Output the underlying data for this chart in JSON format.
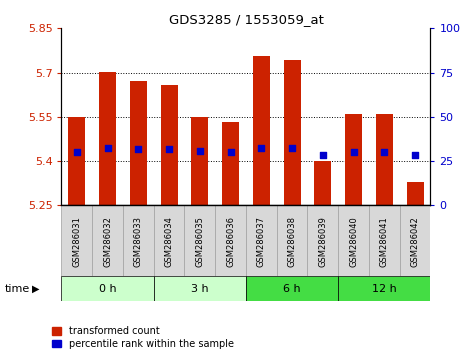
{
  "title": "GDS3285 / 1553059_at",
  "samples": [
    "GSM286031",
    "GSM286032",
    "GSM286033",
    "GSM286034",
    "GSM286035",
    "GSM286036",
    "GSM286037",
    "GSM286038",
    "GSM286039",
    "GSM286040",
    "GSM286041",
    "GSM286042"
  ],
  "bar_tops": [
    5.548,
    5.703,
    5.672,
    5.658,
    5.548,
    5.534,
    5.755,
    5.742,
    5.4,
    5.558,
    5.558,
    5.328
  ],
  "bar_bottom": 5.25,
  "blue_y": [
    5.432,
    5.443,
    5.44,
    5.44,
    5.435,
    5.432,
    5.445,
    5.443,
    5.42,
    5.432,
    5.43,
    5.42
  ],
  "ylim_left": [
    5.25,
    5.85
  ],
  "ylim_right": [
    0,
    100
  ],
  "yticks_left": [
    5.25,
    5.4,
    5.55,
    5.7,
    5.85
  ],
  "ytick_labels_left": [
    "5.25",
    "5.4",
    "5.55",
    "5.7",
    "5.85"
  ],
  "yticks_right": [
    0,
    25,
    50,
    75,
    100
  ],
  "ytick_labels_right": [
    "0",
    "25",
    "50",
    "75",
    "100"
  ],
  "bar_color": "#cc2200",
  "blue_color": "#0000cc",
  "group_boundaries": [
    {
      "start": 0,
      "end": 2,
      "label": "0 h",
      "color": "#ccffcc"
    },
    {
      "start": 3,
      "end": 5,
      "label": "3 h",
      "color": "#ccffcc"
    },
    {
      "start": 6,
      "end": 8,
      "label": "6 h",
      "color": "#44dd44"
    },
    {
      "start": 9,
      "end": 11,
      "label": "12 h",
      "color": "#44dd44"
    }
  ],
  "tick_color_left": "#cc2200",
  "tick_color_right": "#0000cc",
  "bar_width": 0.55,
  "legend_red": "transformed count",
  "legend_blue": "percentile rank within the sample",
  "time_label": "time"
}
